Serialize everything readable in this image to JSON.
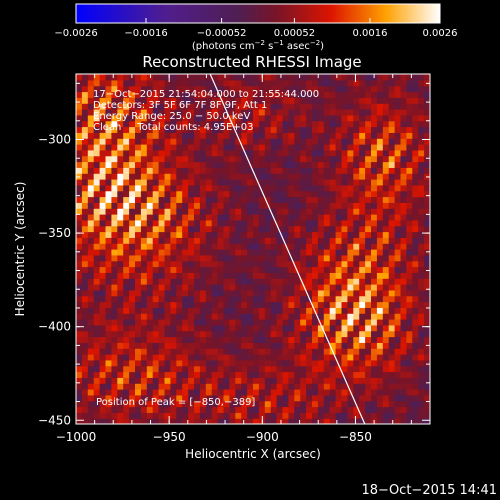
{
  "chart_data": {
    "type": "heatmap",
    "title": "Reconstructed RHESSI Image",
    "xlabel": "Heliocentric X (arcsec)",
    "ylabel": "Heliocentric Y (arcsec)",
    "xlim": [
      -1000,
      -810
    ],
    "ylim": [
      -452,
      -265
    ],
    "x_ticks": [
      -1000,
      -950,
      -900,
      -850
    ],
    "x_tick_labels": [
      "−1000",
      "−950",
      "−900",
      "−850"
    ],
    "y_ticks": [
      -450,
      -400,
      -350,
      -300
    ],
    "y_tick_labels": [
      "−450",
      "−400",
      "−350",
      "−300"
    ],
    "colorbar": {
      "min": -0.0026,
      "max": 0.0026,
      "ticks": [
        -0.0026,
        -0.0016,
        -0.00052,
        0.00052,
        0.0016,
        0.0026
      ],
      "tick_labels": [
        "−0.0026",
        "−0.0016",
        "−0.00052",
        "0.00052",
        "0.0016",
        "0.0026"
      ],
      "units_prefix": "(photons cm",
      "units_exp1": "−2",
      "units_mid1": " s",
      "units_exp2": "−1",
      "units_mid2": " asec",
      "units_exp3": "−2",
      "units_suffix": ")"
    },
    "info_lines": [
      "17−Oct−2015 21:54:04.000 to 21:55:44.000",
      "Detectors: 3F 5F 6F 7F 8F 9F, Att 1",
      "Energy Range: 25.0 − 50.0 keV",
      "Clean     Total counts: 4.95E+03"
    ],
    "peak_label": "Position of Peak = [−850,−389]",
    "peak": [
      -850,
      -389
    ],
    "limb_line": [
      [
        -928,
        -265
      ],
      [
        -845,
        -452
      ]
    ],
    "bright_regions": [
      {
        "x": -985,
        "y": -300,
        "sx": 22,
        "sy": 35,
        "amp": 0.0022
      },
      {
        "x": -965,
        "y": -345,
        "sx": 28,
        "sy": 25,
        "amp": 0.0018
      },
      {
        "x": -850,
        "y": -389,
        "sx": 22,
        "sy": 28,
        "amp": 0.0026
      },
      {
        "x": -835,
        "y": -310,
        "sx": 18,
        "sy": 25,
        "amp": 0.0018
      },
      {
        "x": -970,
        "y": -425,
        "sx": 30,
        "sy": 20,
        "amp": 0.0015
      },
      {
        "x": -900,
        "y": -440,
        "sx": 25,
        "sy": 15,
        "amp": 0.001
      },
      {
        "x": -905,
        "y": -285,
        "sx": 20,
        "sy": 15,
        "amp": 0.001
      }
    ],
    "colors": {
      "colormap": [
        "#0000ff",
        "#ffffff",
        "#ff0000",
        "#ffff00",
        "#ffffff"
      ],
      "limb_line": "#ffffff",
      "axes": "#ffffff",
      "background": "#000000"
    }
  },
  "footer": {
    "datetime": "18−Oct−2015 14:41"
  }
}
